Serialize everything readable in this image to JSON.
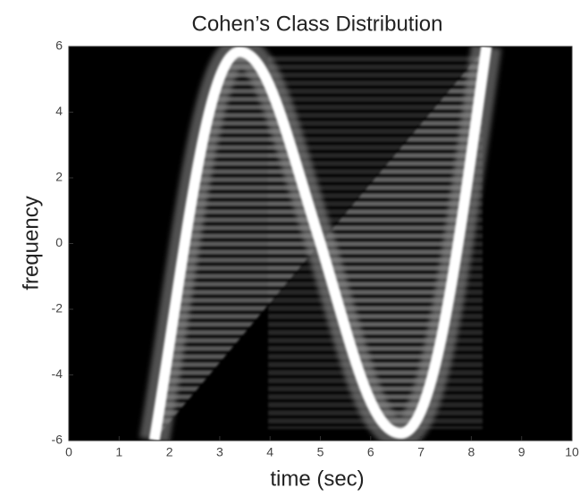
{
  "chart_data": {
    "type": "image",
    "title": "Cohen’s Class Distribution",
    "xlabel": "time (sec)",
    "ylabel": "frequency",
    "xlim": [
      0,
      10
    ],
    "xticks": [
      0,
      1,
      2,
      3,
      4,
      5,
      6,
      7,
      8,
      9,
      10
    ],
    "ylim": [
      -6,
      6
    ],
    "yticks": [
      -6,
      -4,
      -2,
      0,
      2,
      4,
      6
    ]
  }
}
